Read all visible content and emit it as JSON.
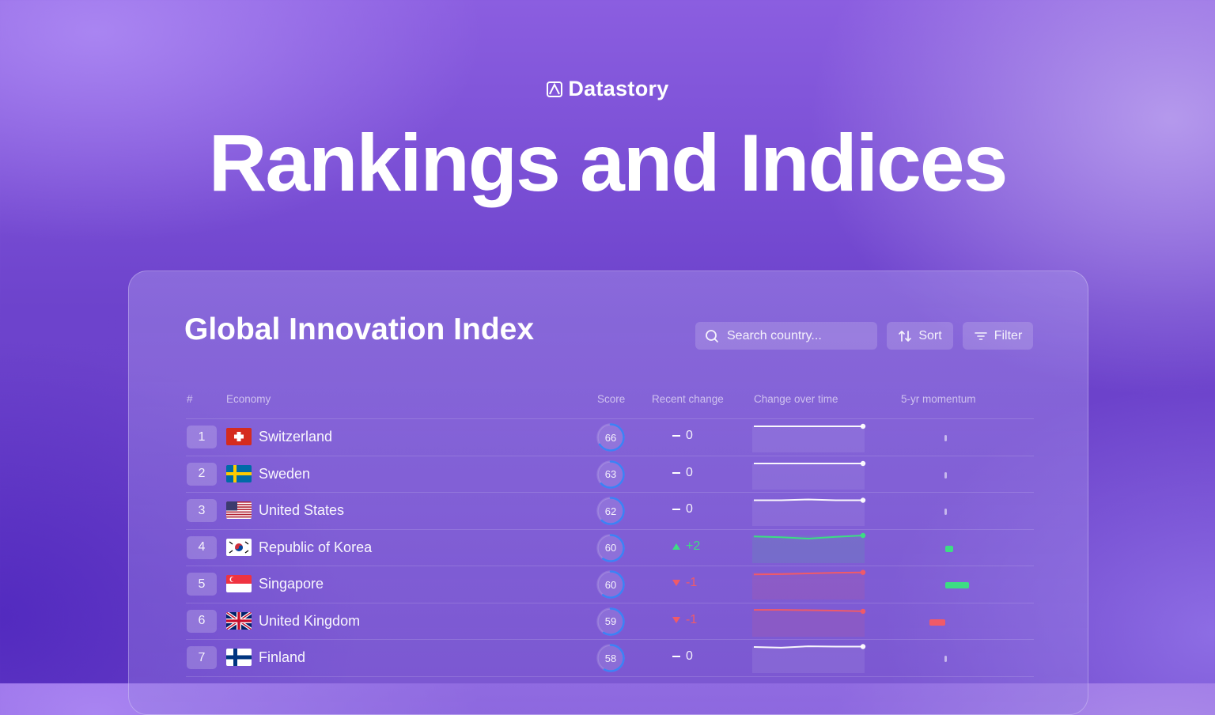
{
  "brand": {
    "name": "Datastory"
  },
  "hero": {
    "title": "Rankings and Indices"
  },
  "panel": {
    "title": "Global Innovation Index",
    "search": {
      "placeholder": "Search country..."
    },
    "sort_label": "Sort",
    "filter_label": "Filter"
  },
  "table": {
    "headers": [
      "#",
      "Economy",
      "Score",
      "Recent change",
      "Change over time",
      "5-yr momentum"
    ],
    "rows": [
      {
        "rank": "1",
        "economy": "Switzerland",
        "flag": "switzerland-flag",
        "score": "66",
        "score_value": 66,
        "change": "0",
        "change_dir": "none",
        "trend": [
          66,
          66,
          66,
          66,
          66
        ],
        "momentum": 0
      },
      {
        "rank": "2",
        "economy": "Sweden",
        "flag": "sweden-flag",
        "score": "63",
        "score_value": 63,
        "change": "0",
        "change_dir": "none",
        "trend": [
          63,
          63,
          63,
          63,
          63
        ],
        "momentum": 0
      },
      {
        "rank": "3",
        "economy": "United States",
        "flag": "united-states-flag",
        "score": "62",
        "score_value": 62,
        "change": "0",
        "change_dir": "none",
        "trend": [
          62,
          62,
          62.2,
          62,
          62
        ],
        "momentum": 0
      },
      {
        "rank": "4",
        "economy": "Republic of Korea",
        "flag": "republic-of-korea-flag",
        "score": "60",
        "score_value": 60,
        "change": "+2",
        "change_dir": "up",
        "trend": [
          59.6,
          59.4,
          59.0,
          59.5,
          59.9
        ],
        "momentum": 1
      },
      {
        "rank": "5",
        "economy": "Singapore",
        "flag": "singapore-flag",
        "score": "60",
        "score_value": 60,
        "change": "-1",
        "change_dir": "down",
        "trend": [
          59.2,
          59.3,
          59.5,
          59.7,
          59.8
        ],
        "momentum": 3
      },
      {
        "rank": "6",
        "economy": "United Kingdom",
        "flag": "united-kingdom-flag",
        "score": "59",
        "score_value": 59,
        "change": "-1",
        "change_dir": "down",
        "trend": [
          59.8,
          59.8,
          59.7,
          59.6,
          59.4
        ],
        "momentum": -2
      },
      {
        "rank": "7",
        "economy": "Finland",
        "flag": "finland-flag",
        "score": "58",
        "score_value": 58,
        "change": "0",
        "change_dir": "none",
        "trend": [
          58,
          57.8,
          58.2,
          58.1,
          58.1
        ],
        "momentum": 0
      }
    ]
  },
  "colors": {
    "up": "#3ddc84",
    "down": "#f05a68",
    "neutral": "#ffffff",
    "ring": "#3b82f6"
  }
}
